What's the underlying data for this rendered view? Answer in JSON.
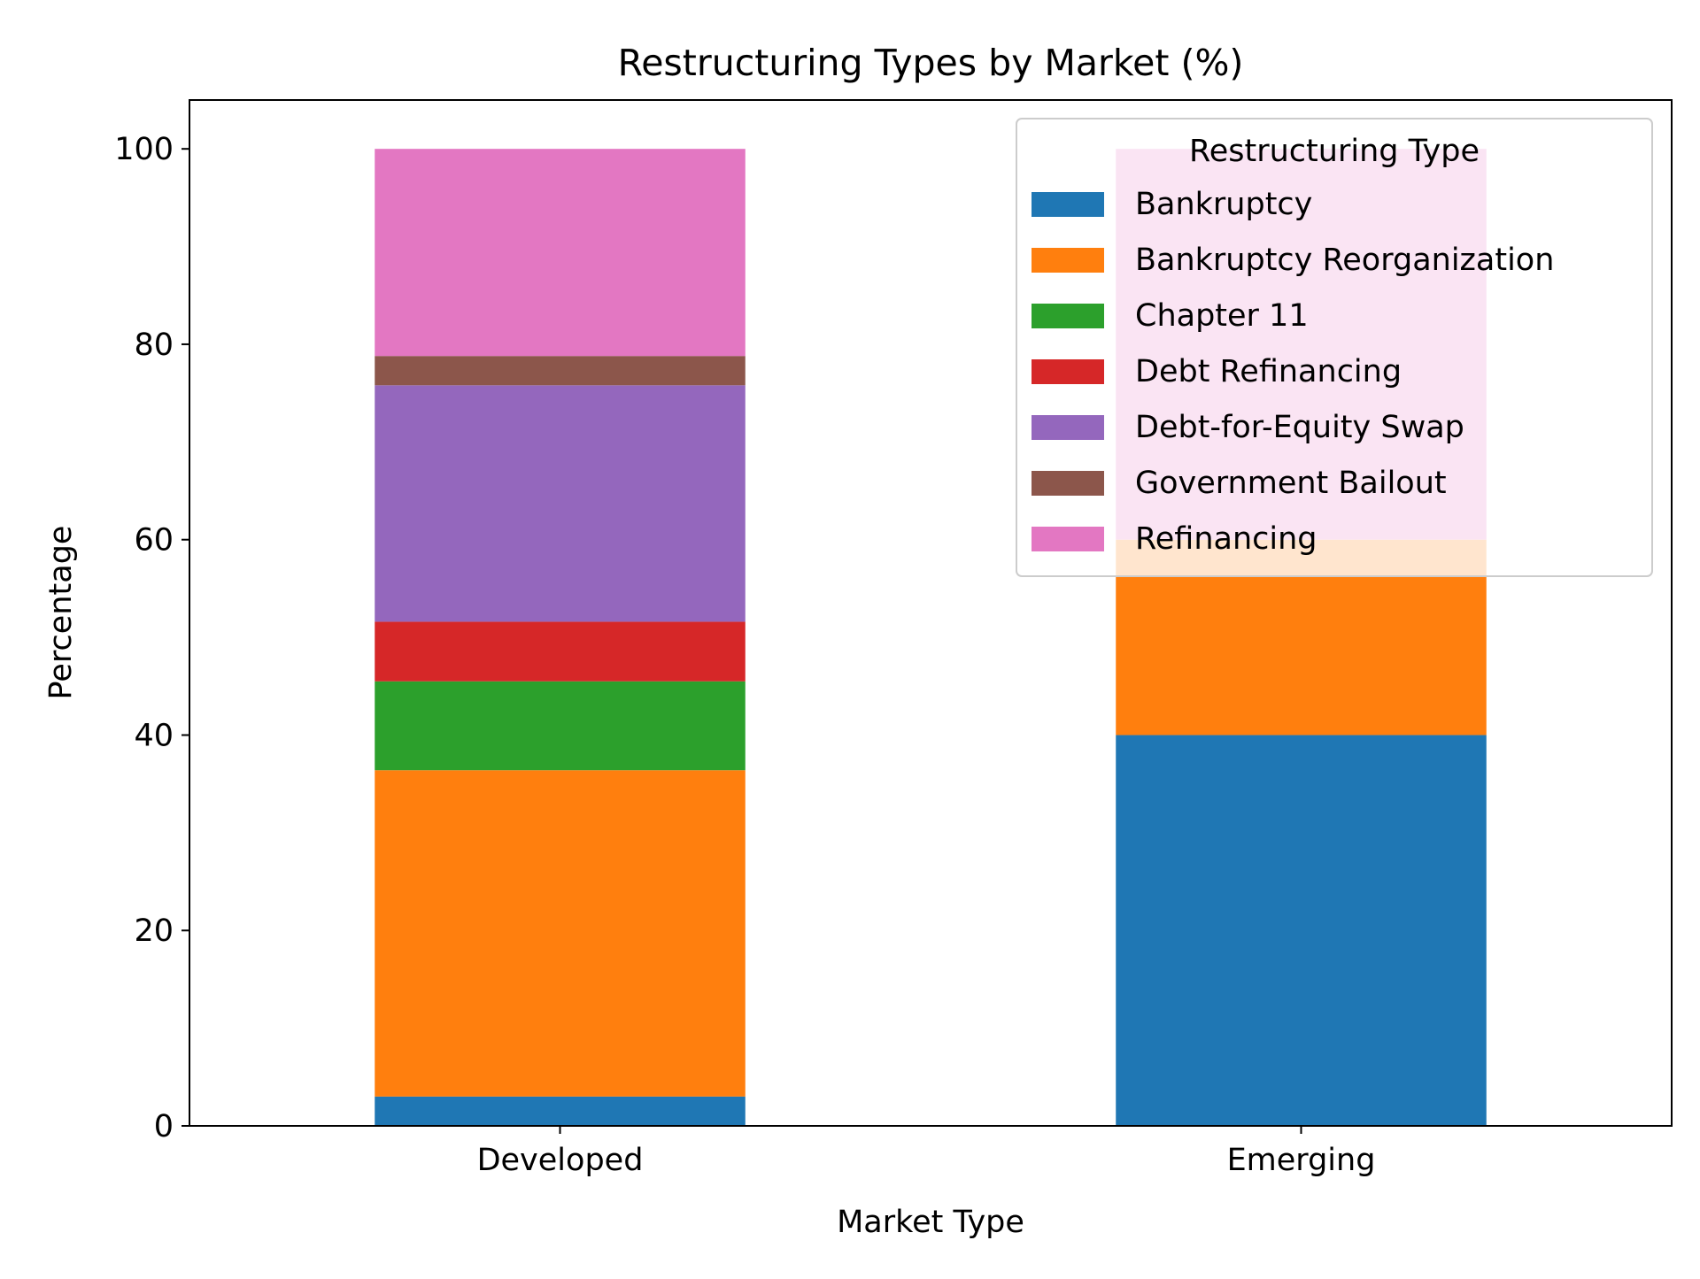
{
  "chart_data": {
    "type": "bar",
    "stacked": true,
    "title": "Restructuring Types by Market (%)",
    "xlabel": "Market Type",
    "ylabel": "Percentage",
    "ylim": [
      0,
      105
    ],
    "yticks": [
      0,
      20,
      40,
      60,
      80,
      100
    ],
    "categories": [
      "Developed",
      "Emerging"
    ],
    "legend": {
      "title": "Restructuring Type",
      "placement": "top-right"
    },
    "series": [
      {
        "name": "Bankruptcy",
        "color": "#1f77b4",
        "values": [
          3,
          40
        ]
      },
      {
        "name": "Bankruptcy Reorganization",
        "color": "#ff7f0e",
        "values": [
          33.4,
          20
        ]
      },
      {
        "name": "Chapter 11",
        "color": "#2ca02c",
        "values": [
          9.1,
          0
        ]
      },
      {
        "name": "Debt Refinancing",
        "color": "#d62728",
        "values": [
          6.1,
          0
        ]
      },
      {
        "name": "Debt-for-Equity Swap",
        "color": "#9467bd",
        "values": [
          24.2,
          0
        ]
      },
      {
        "name": "Government Bailout",
        "color": "#8c564b",
        "values": [
          3,
          0
        ]
      },
      {
        "name": "Refinancing",
        "color": "#e377c2",
        "values": [
          21.2,
          40
        ]
      }
    ]
  }
}
